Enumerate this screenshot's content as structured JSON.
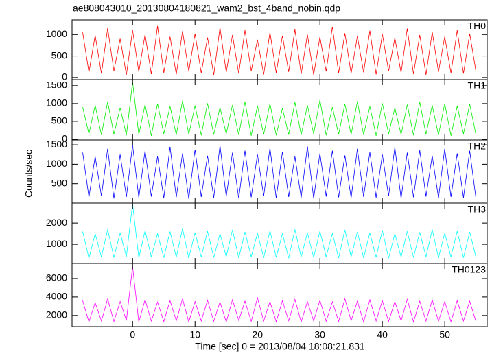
{
  "title": "ae808043010_20130804180821_wam2_bst_4band_nobin.qdp",
  "x_label": "Time [sec] 0 = 2013/08/04 18:08:21.831",
  "y_label": "Counts/sec",
  "x_axis": {
    "xlim": [
      -9.7,
      56.8
    ],
    "xticks": [
      0,
      10,
      20,
      30,
      40,
      50
    ]
  },
  "chart_data": [
    {
      "type": "line",
      "label": "TH0",
      "color": "#ff0000",
      "ylim": [
        -50,
        1340
      ],
      "yticks": [
        0,
        500,
        1000
      ],
      "x": [
        -8,
        -7,
        -6,
        -5,
        -4,
        -3,
        -2,
        -1,
        0,
        1,
        2,
        3,
        4,
        5,
        6,
        7,
        8,
        9,
        10,
        11,
        12,
        13,
        14,
        15,
        16,
        17,
        18,
        19,
        20,
        21,
        22,
        23,
        24,
        25,
        26,
        27,
        28,
        29,
        30,
        31,
        32,
        33,
        34,
        35,
        36,
        37,
        38,
        39,
        40,
        41,
        42,
        43,
        44,
        45,
        46,
        47,
        48,
        49,
        50,
        51,
        52,
        53,
        54,
        55
      ],
      "values": [
        1050,
        120,
        980,
        90,
        1150,
        150,
        900,
        60,
        1100,
        130,
        1000,
        80,
        1200,
        110,
        950,
        70,
        1080,
        140,
        1020,
        100,
        930,
        60,
        1160,
        120,
        990,
        90,
        1100,
        150,
        880,
        70,
        1050,
        110,
        970,
        130,
        1120,
        80,
        1000,
        60,
        940,
        140,
        1180,
        100,
        1030,
        90,
        960,
        120,
        1090,
        70,
        1010,
        150,
        920,
        110,
        1140,
        80,
        990,
        60,
        1060,
        130,
        950,
        100,
        1100,
        90,
        1020,
        140
      ]
    },
    {
      "type": "line",
      "label": "TH1",
      "color": "#00ee00",
      "ylim": [
        -20,
        1670
      ],
      "yticks": [
        0,
        500,
        1000,
        1500
      ],
      "x": [
        -8,
        -7,
        -6,
        -5,
        -4,
        -3,
        -2,
        -1,
        0,
        1,
        2,
        3,
        4,
        5,
        6,
        7,
        8,
        9,
        10,
        11,
        12,
        13,
        14,
        15,
        16,
        17,
        18,
        19,
        20,
        21,
        22,
        23,
        24,
        25,
        26,
        27,
        28,
        29,
        30,
        31,
        32,
        33,
        34,
        35,
        36,
        37,
        38,
        39,
        40,
        41,
        42,
        43,
        44,
        45,
        46,
        47,
        48,
        49,
        50,
        51,
        52,
        53,
        54,
        55
      ],
      "values": [
        900,
        150,
        950,
        120,
        1050,
        140,
        880,
        110,
        1600,
        130,
        970,
        100,
        1000,
        150,
        920,
        120,
        1080,
        140,
        940,
        110,
        1010,
        130,
        890,
        150,
        960,
        120,
        1050,
        100,
        930,
        140,
        1000,
        110,
        870,
        130,
        1040,
        120,
        950,
        150,
        1100,
        110,
        900,
        140,
        990,
        130,
        1060,
        120,
        920,
        100,
        1010,
        150,
        880,
        130,
        970,
        110,
        1040,
        140,
        950,
        120,
        1000,
        100,
        930,
        150,
        980,
        130
      ]
    },
    {
      "type": "line",
      "label": "TH2",
      "color": "#0000ff",
      "ylim": [
        0,
        1625
      ],
      "yticks": [
        500,
        1000,
        1500
      ],
      "x": [
        -8,
        -7,
        -6,
        -5,
        -4,
        -3,
        -2,
        -1,
        0,
        1,
        2,
        3,
        4,
        5,
        6,
        7,
        8,
        9,
        10,
        11,
        12,
        13,
        14,
        15,
        16,
        17,
        18,
        19,
        20,
        21,
        22,
        23,
        24,
        25,
        26,
        27,
        28,
        29,
        30,
        31,
        32,
        33,
        34,
        35,
        36,
        37,
        38,
        39,
        40,
        41,
        42,
        43,
        44,
        45,
        46,
        47,
        48,
        49,
        50,
        51,
        52,
        53,
        54,
        55
      ],
      "values": [
        1300,
        150,
        1200,
        180,
        1400,
        120,
        1250,
        160,
        1500,
        140,
        1350,
        170,
        1200,
        130,
        1450,
        150,
        1280,
        110,
        1380,
        160,
        1220,
        140,
        1480,
        170,
        1300,
        120,
        1350,
        150,
        1250,
        180,
        1420,
        130,
        1320,
        160,
        1200,
        140,
        1460,
        120,
        1280,
        170,
        1350,
        150,
        1230,
        130,
        1400,
        160,
        1310,
        140,
        1250,
        180,
        1440,
        120,
        1300,
        150,
        1360,
        170,
        1220,
        130,
        1400,
        160,
        1280,
        140,
        1350,
        120
      ]
    },
    {
      "type": "line",
      "label": "TH3",
      "color": "#00ffff",
      "ylim": [
        100,
        2940
      ],
      "yticks": [
        1000,
        2000
      ],
      "x": [
        -8,
        -7,
        -6,
        -5,
        -4,
        -3,
        -2,
        -1,
        0,
        1,
        2,
        3,
        4,
        5,
        6,
        7,
        8,
        9,
        10,
        11,
        12,
        13,
        14,
        15,
        16,
        17,
        18,
        19,
        20,
        21,
        22,
        23,
        24,
        25,
        26,
        27,
        28,
        29,
        30,
        31,
        32,
        33,
        34,
        35,
        36,
        37,
        38,
        39,
        40,
        41,
        42,
        43,
        44,
        45,
        46,
        47,
        48,
        49,
        50,
        51,
        52,
        53,
        54,
        55
      ],
      "values": [
        1600,
        350,
        1500,
        400,
        1700,
        380,
        1550,
        420,
        2900,
        360,
        1650,
        410,
        1500,
        370,
        1600,
        390,
        1750,
        350,
        1550,
        400,
        1620,
        380,
        1500,
        420,
        1680,
        360,
        1580,
        410,
        1520,
        370,
        1640,
        390,
        1500,
        350,
        1700,
        400,
        1560,
        380,
        1620,
        420,
        1510,
        360,
        1680,
        410,
        1590,
        370,
        1540,
        390,
        1660,
        350,
        1500,
        400,
        1610,
        380,
        1570,
        420,
        1700,
        360,
        1530,
        410,
        1620,
        370,
        1580,
        390
      ]
    },
    {
      "type": "line",
      "label": "TH0123",
      "color": "#ff00ff",
      "ylim": [
        800,
        7630
      ],
      "yticks": [
        2000,
        4000,
        6000
      ],
      "x": [
        -8,
        -7,
        -6,
        -5,
        -4,
        -3,
        -2,
        -1,
        0,
        1,
        2,
        3,
        4,
        5,
        6,
        7,
        8,
        9,
        10,
        11,
        12,
        13,
        14,
        15,
        16,
        17,
        18,
        19,
        20,
        21,
        22,
        23,
        24,
        25,
        26,
        27,
        28,
        29,
        30,
        31,
        32,
        33,
        34,
        35,
        36,
        37,
        38,
        39,
        40,
        41,
        42,
        43,
        44,
        45,
        46,
        47,
        48,
        49,
        50,
        51,
        52,
        53,
        54,
        55
      ],
      "values": [
        3600,
        1300,
        3400,
        1400,
        3800,
        1350,
        3500,
        1450,
        7300,
        1300,
        3700,
        1400,
        3450,
        1350,
        3600,
        1420,
        3800,
        1300,
        3500,
        1400,
        3650,
        1380,
        3450,
        1300,
        3700,
        1450,
        3550,
        1350,
        3900,
        1400,
        3500,
        1320,
        3600,
        1420,
        3750,
        1300,
        3500,
        1400,
        3650,
        1380,
        3480,
        1350,
        3800,
        1420,
        3550,
        1300,
        3700,
        1400,
        3600,
        1350,
        3500,
        1420,
        3750,
        1300,
        3550,
        1400,
        3680,
        1380,
        3500,
        1320,
        3600,
        1400,
        3550,
        1350
      ]
    }
  ]
}
